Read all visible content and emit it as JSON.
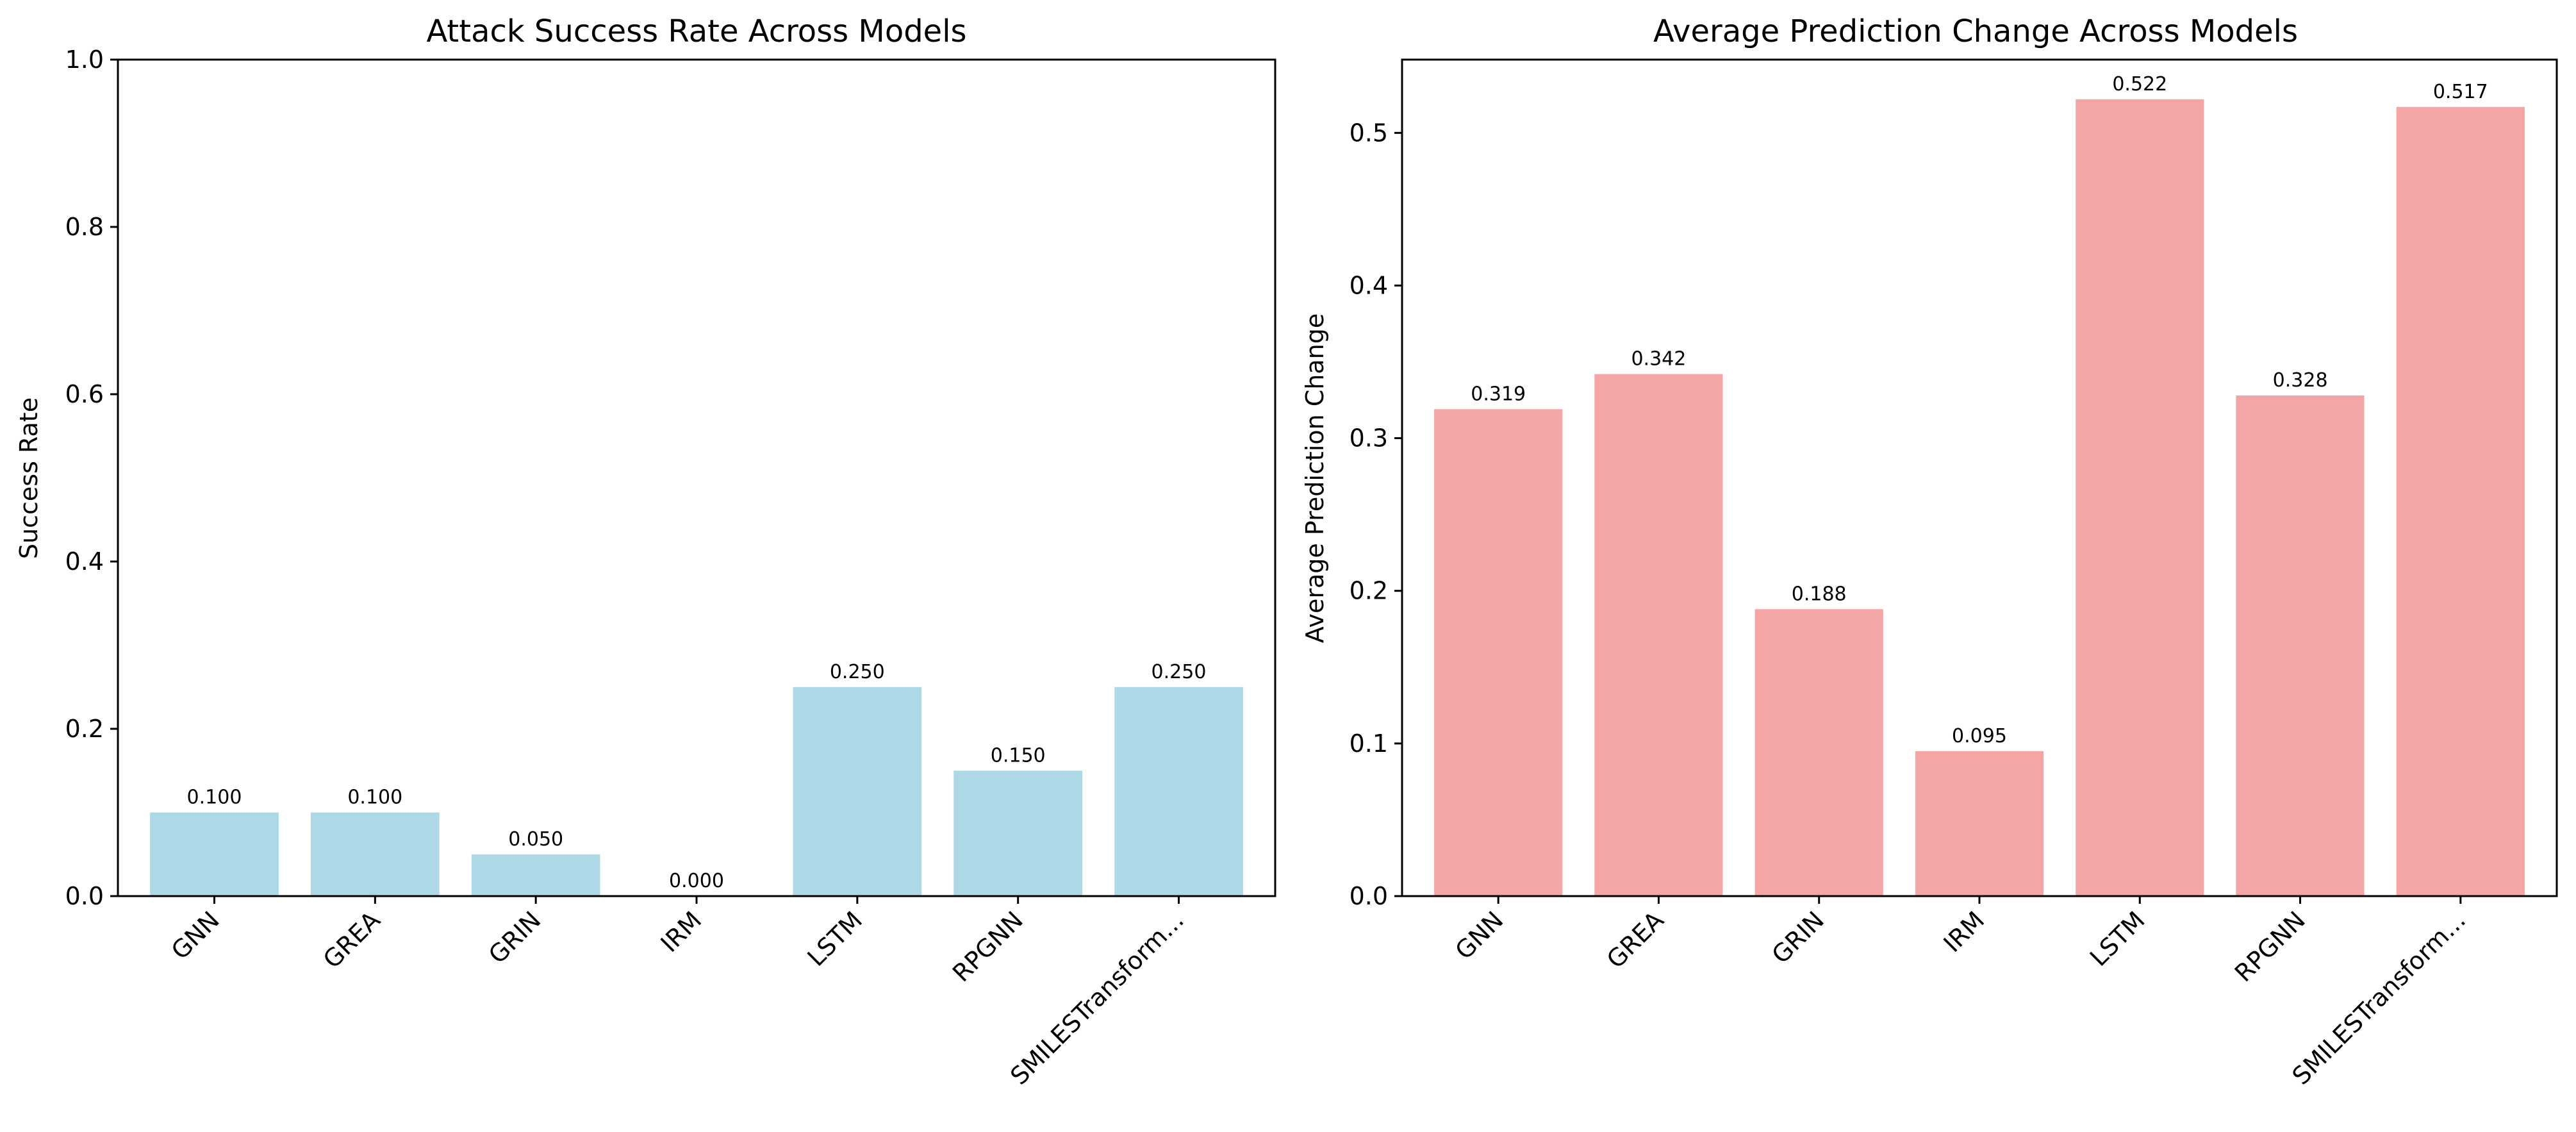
{
  "chart_data": [
    {
      "type": "bar",
      "title": "Attack Success Rate Across Models",
      "xlabel": "",
      "ylabel": "Success Rate",
      "categories": [
        "GNN",
        "GREA",
        "GRIN",
        "IRM",
        "LSTM",
        "RPGNN",
        "SMILESTransform..."
      ],
      "values": [
        0.1,
        0.1,
        0.05,
        0.0,
        0.25,
        0.15,
        0.25
      ],
      "value_labels": [
        "0.100",
        "0.100",
        "0.050",
        "0.000",
        "0.250",
        "0.150",
        "0.250"
      ],
      "ylim": [
        0,
        1.0
      ],
      "yticks": [
        "0.0",
        "0.2",
        "0.4",
        "0.6",
        "0.8",
        "1.0"
      ],
      "ytick_values": [
        0,
        0.2,
        0.4,
        0.6,
        0.8,
        1.0
      ],
      "bar_color": "#add8e6",
      "grid": false,
      "legend": "none"
    },
    {
      "type": "bar",
      "title": "Average Prediction Change Across Models",
      "xlabel": "",
      "ylabel": "Average Prediction Change",
      "categories": [
        "GNN",
        "GREA",
        "GRIN",
        "IRM",
        "LSTM",
        "RPGNN",
        "SMILESTransform..."
      ],
      "values": [
        0.319,
        0.342,
        0.188,
        0.095,
        0.522,
        0.328,
        0.517
      ],
      "value_labels": [
        "0.319",
        "0.342",
        "0.188",
        "0.095",
        "0.522",
        "0.328",
        "0.517"
      ],
      "ylim": [
        0,
        0.548
      ],
      "yticks": [
        "0.0",
        "0.1",
        "0.2",
        "0.3",
        "0.4",
        "0.5"
      ],
      "ytick_values": [
        0,
        0.1,
        0.2,
        0.3,
        0.4,
        0.5
      ],
      "bar_color": "#f4a6a6",
      "grid": false,
      "legend": "none"
    }
  ]
}
